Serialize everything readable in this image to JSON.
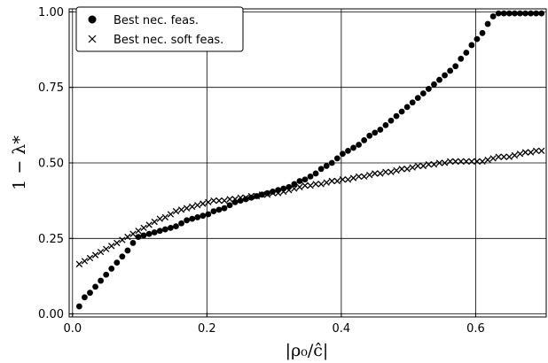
{
  "chart_data": {
    "type": "scatter",
    "xlabel": "|ρ₀/ĉ|",
    "ylabel": "1 − λ*",
    "xlim": [
      -0.005,
      0.705
    ],
    "ylim": [
      -0.01,
      1.01
    ],
    "x_ticks": [
      0.0,
      0.2,
      0.4,
      0.6
    ],
    "x_tick_labels": [
      "0.0",
      "0.2",
      "0.4",
      "0.6"
    ],
    "y_ticks": [
      0.0,
      0.25,
      0.5,
      0.75,
      1.0
    ],
    "y_tick_labels": [
      "0.00",
      "0.25",
      "0.50",
      "0.75",
      "1.00"
    ],
    "grid": true,
    "legend_position": "top-left",
    "series": [
      {
        "name": "Best nec. feas.",
        "marker": "circle",
        "color": "#000000",
        "x": [
          0.01,
          0.018,
          0.026,
          0.034,
          0.042,
          0.05,
          0.058,
          0.066,
          0.074,
          0.082,
          0.09,
          0.098,
          0.106,
          0.114,
          0.122,
          0.13,
          0.138,
          0.146,
          0.154,
          0.162,
          0.17,
          0.178,
          0.186,
          0.194,
          0.202,
          0.21,
          0.218,
          0.226,
          0.234,
          0.242,
          0.25,
          0.258,
          0.266,
          0.274,
          0.282,
          0.29,
          0.298,
          0.306,
          0.314,
          0.322,
          0.33,
          0.338,
          0.346,
          0.354,
          0.362,
          0.37,
          0.378,
          0.386,
          0.394,
          0.402,
          0.41,
          0.418,
          0.426,
          0.434,
          0.442,
          0.45,
          0.458,
          0.466,
          0.474,
          0.482,
          0.49,
          0.498,
          0.506,
          0.514,
          0.522,
          0.53,
          0.538,
          0.546,
          0.554,
          0.562,
          0.57,
          0.578,
          0.586,
          0.594,
          0.602,
          0.61,
          0.618,
          0.626,
          0.634,
          0.642,
          0.65,
          0.658,
          0.666,
          0.674,
          0.682,
          0.69,
          0.698
        ],
        "y": [
          0.025,
          0.055,
          0.07,
          0.09,
          0.11,
          0.13,
          0.15,
          0.17,
          0.19,
          0.21,
          0.235,
          0.255,
          0.26,
          0.265,
          0.27,
          0.275,
          0.28,
          0.285,
          0.29,
          0.3,
          0.31,
          0.315,
          0.32,
          0.325,
          0.33,
          0.34,
          0.345,
          0.35,
          0.36,
          0.37,
          0.375,
          0.38,
          0.385,
          0.39,
          0.395,
          0.4,
          0.405,
          0.41,
          0.415,
          0.42,
          0.43,
          0.44,
          0.445,
          0.455,
          0.465,
          0.48,
          0.49,
          0.5,
          0.515,
          0.53,
          0.54,
          0.55,
          0.56,
          0.575,
          0.59,
          0.6,
          0.61,
          0.625,
          0.64,
          0.655,
          0.67,
          0.685,
          0.7,
          0.715,
          0.73,
          0.745,
          0.76,
          0.775,
          0.79,
          0.805,
          0.82,
          0.845,
          0.865,
          0.89,
          0.91,
          0.93,
          0.96,
          0.985,
          0.995,
          0.995,
          0.995,
          0.995,
          0.995,
          0.995,
          0.995,
          0.995,
          0.995
        ]
      },
      {
        "name": "Best nec. soft feas.",
        "marker": "x",
        "color": "#000000",
        "x": [
          0.01,
          0.018,
          0.026,
          0.034,
          0.042,
          0.05,
          0.058,
          0.066,
          0.074,
          0.082,
          0.09,
          0.098,
          0.106,
          0.114,
          0.122,
          0.13,
          0.138,
          0.146,
          0.154,
          0.162,
          0.17,
          0.178,
          0.186,
          0.194,
          0.202,
          0.21,
          0.218,
          0.226,
          0.234,
          0.242,
          0.25,
          0.258,
          0.266,
          0.274,
          0.282,
          0.29,
          0.298,
          0.306,
          0.314,
          0.322,
          0.33,
          0.338,
          0.346,
          0.354,
          0.362,
          0.37,
          0.378,
          0.386,
          0.394,
          0.402,
          0.41,
          0.418,
          0.426,
          0.434,
          0.442,
          0.45,
          0.458,
          0.466,
          0.474,
          0.482,
          0.49,
          0.498,
          0.506,
          0.514,
          0.522,
          0.53,
          0.538,
          0.546,
          0.554,
          0.562,
          0.57,
          0.578,
          0.586,
          0.594,
          0.602,
          0.61,
          0.618,
          0.626,
          0.634,
          0.642,
          0.65,
          0.658,
          0.666,
          0.674,
          0.682,
          0.69,
          0.698
        ],
        "y": [
          0.165,
          0.175,
          0.185,
          0.195,
          0.205,
          0.215,
          0.225,
          0.235,
          0.245,
          0.255,
          0.265,
          0.275,
          0.285,
          0.295,
          0.305,
          0.315,
          0.32,
          0.33,
          0.34,
          0.345,
          0.35,
          0.355,
          0.36,
          0.365,
          0.37,
          0.375,
          0.375,
          0.375,
          0.38,
          0.38,
          0.385,
          0.385,
          0.39,
          0.39,
          0.395,
          0.395,
          0.4,
          0.4,
          0.405,
          0.41,
          0.415,
          0.42,
          0.425,
          0.425,
          0.43,
          0.43,
          0.435,
          0.44,
          0.44,
          0.445,
          0.445,
          0.45,
          0.455,
          0.455,
          0.46,
          0.465,
          0.465,
          0.47,
          0.47,
          0.475,
          0.48,
          0.48,
          0.485,
          0.49,
          0.49,
          0.495,
          0.495,
          0.5,
          0.5,
          0.505,
          0.505,
          0.505,
          0.505,
          0.505,
          0.505,
          0.505,
          0.51,
          0.515,
          0.52,
          0.52,
          0.52,
          0.525,
          0.53,
          0.535,
          0.535,
          0.54,
          0.54
        ]
      }
    ]
  }
}
